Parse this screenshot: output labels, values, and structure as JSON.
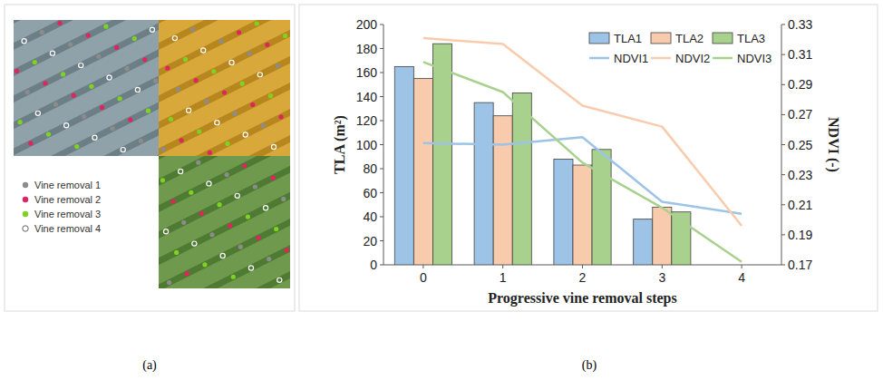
{
  "figure": {
    "panel_a_label": "(a)",
    "panel_b_label": "(b)"
  },
  "image_panel": {
    "legend": [
      {
        "name": "Vine removal 1",
        "color": "#8c8c8c",
        "marker": "filled"
      },
      {
        "name": "Vine removal 2",
        "color": "#e0245e",
        "marker": "filled"
      },
      {
        "name": "Vine removal 3",
        "color": "#7ed321",
        "marker": "filled"
      },
      {
        "name": "Vine removal 4",
        "color": "#ffffff",
        "marker": "open"
      }
    ]
  },
  "chart_data": {
    "type": "bar",
    "x_label": "Progressive vine removal steps",
    "y_label": "TLA (m²)",
    "y2_label": "NDVI (-)",
    "categories": [
      "0",
      "1",
      "2",
      "3",
      "4"
    ],
    "ylim": [
      0,
      200
    ],
    "yticks": [
      0,
      20,
      40,
      60,
      80,
      100,
      120,
      140,
      160,
      180,
      200
    ],
    "y2lim": [
      0.17,
      0.33
    ],
    "y2ticks": [
      0.17,
      0.19,
      0.21,
      0.23,
      0.25,
      0.27,
      0.29,
      0.31,
      0.33
    ],
    "grid": false,
    "legend": "upper right",
    "series": [
      {
        "name": "TLA1",
        "type": "bar",
        "color": "#9dc3e6",
        "values": [
          165,
          135,
          88,
          38,
          null
        ]
      },
      {
        "name": "TLA2",
        "type": "bar",
        "color": "#f8cbad",
        "values": [
          155,
          124,
          83,
          48,
          null
        ]
      },
      {
        "name": "TLA3",
        "type": "bar",
        "color": "#a9d18e",
        "values": [
          184,
          143,
          96,
          44,
          null
        ]
      },
      {
        "name": "NDVI1",
        "type": "line",
        "axis": "y2",
        "color": "#9dc3e6",
        "values": [
          0.251,
          0.25,
          0.255,
          0.212,
          0.204
        ]
      },
      {
        "name": "NDVI2",
        "type": "line",
        "axis": "y2",
        "color": "#f8cbad",
        "values": [
          0.321,
          0.317,
          0.276,
          0.262,
          0.196
        ]
      },
      {
        "name": "NDVI3",
        "type": "line",
        "axis": "y2",
        "color": "#a9d18e",
        "values": [
          0.305,
          0.285,
          0.238,
          0.208,
          0.172
        ]
      }
    ]
  }
}
